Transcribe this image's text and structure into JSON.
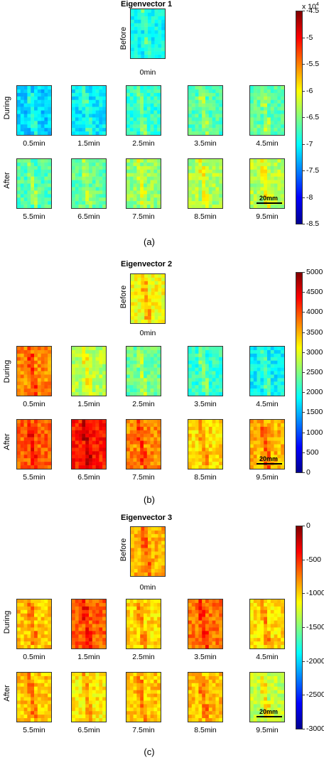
{
  "colormap": [
    "#00008f",
    "#0000ff",
    "#0080ff",
    "#00ffff",
    "#80ff80",
    "#ffff00",
    "#ff8000",
    "#ff0000",
    "#800000"
  ],
  "row_labels": {
    "before": "Before",
    "during": "During",
    "after": "After"
  },
  "time_labels": {
    "before": "0min",
    "during": [
      "0.5min",
      "1.5min",
      "2.5min",
      "3.5min",
      "4.5min"
    ],
    "after": [
      "5.5min",
      "6.5min",
      "7.5min",
      "8.5min",
      "9.5min"
    ]
  },
  "scale_bar": "20mm",
  "panels": [
    {
      "id": "a",
      "title": "Eigenvector 1",
      "sublabel": "(a)",
      "colorbar": {
        "multiplier_base": "x 10",
        "multiplier_exp": "4",
        "ticks": [
          "-4.5",
          "-5",
          "-5.5",
          "-6",
          "-6.5",
          "-7",
          "-7.5",
          "-8",
          "-8.5"
        ],
        "range": [
          -8.5,
          -4.5
        ]
      },
      "map_levels": {
        "before": 0.38,
        "during": [
          0.33,
          0.36,
          0.42,
          0.45,
          0.47
        ],
        "after": [
          0.45,
          0.47,
          0.52,
          0.54,
          0.55
        ]
      }
    },
    {
      "id": "b",
      "title": "Eigenvector 2",
      "sublabel": "(b)",
      "colorbar": {
        "ticks": [
          "5000",
          "4500",
          "4000",
          "3500",
          "3000",
          "2500",
          "2000",
          "1500",
          "1000",
          "500",
          "0"
        ],
        "range": [
          0,
          5000
        ]
      },
      "map_levels": {
        "before": 0.62,
        "during": [
          0.74,
          0.55,
          0.48,
          0.42,
          0.37
        ],
        "after": [
          0.78,
          0.85,
          0.74,
          0.66,
          0.7
        ]
      }
    },
    {
      "id": "c",
      "title": "Eigenvector 3",
      "sublabel": "(c)",
      "colorbar": {
        "ticks": [
          "0",
          "-500",
          "-1000",
          "-1500",
          "-2000",
          "-2500",
          "-3000"
        ],
        "range": [
          -3000,
          0
        ]
      },
      "map_levels": {
        "before": 0.7,
        "during": [
          0.68,
          0.78,
          0.66,
          0.76,
          0.66
        ],
        "after": [
          0.68,
          0.64,
          0.68,
          0.69,
          0.56
        ]
      }
    }
  ]
}
